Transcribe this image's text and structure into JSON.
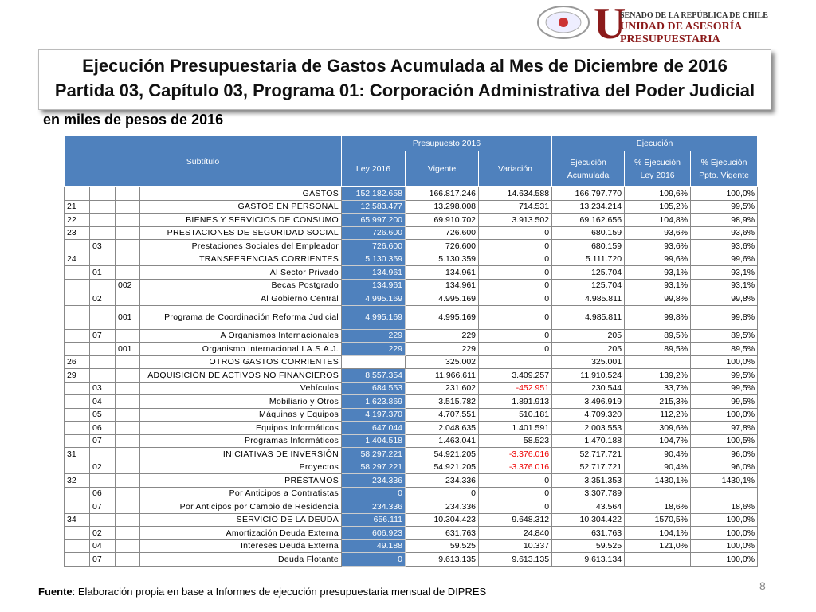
{
  "header": {
    "institution": "SENADO DE LA REPÚBLICA DE CHILE",
    "unit": "UNIDAD DE ASESORÍA PRESUPUESTARIA",
    "title_line1": "Ejecución Presupuestaria de Gastos Acumulada al Mes de Diciembre de 2016",
    "title_line2": "Partida 03, Capítulo 03, Programa 01: Corporación Administrativa del Poder Judicial",
    "subtitle": "en miles de pesos de 2016"
  },
  "table": {
    "group_headers": [
      "Subtítulo",
      "Presupuesto 2016",
      "Ejecución"
    ],
    "columns": [
      "Ley 2016",
      "Vigente",
      "Variación",
      "Ejecución Acumulada",
      "% Ejecución Ley 2016",
      "% Ejecución Ppto. Vigente"
    ],
    "rows": [
      [
        null,
        null,
        null,
        "GASTOS",
        "152.182.658",
        "166.817.246",
        "14.634.588",
        "166.797.770",
        "109,6%",
        "100,0%"
      ],
      [
        "21",
        null,
        null,
        "GASTOS EN PERSONAL",
        "12.583.477",
        "13.298.008",
        "714.531",
        "13.234.214",
        "105,2%",
        "99,5%"
      ],
      [
        "22",
        null,
        null,
        "BIENES Y SERVICIOS DE CONSUMO",
        "65.997.200",
        "69.910.702",
        "3.913.502",
        "69.162.656",
        "104,8%",
        "98,9%"
      ],
      [
        "23",
        null,
        null,
        "PRESTACIONES DE SEGURIDAD SOCIAL",
        "726.600",
        "726.600",
        "0",
        "680.159",
        "93,6%",
        "93,6%"
      ],
      [
        null,
        "03",
        null,
        "Prestaciones Sociales del Empleador",
        "726.600",
        "726.600",
        "0",
        "680.159",
        "93,6%",
        "93,6%"
      ],
      [
        "24",
        null,
        null,
        "TRANSFERENCIAS CORRIENTES",
        "5.130.359",
        "5.130.359",
        "0",
        "5.111.720",
        "99,6%",
        "99,6%"
      ],
      [
        null,
        "01",
        null,
        "Al Sector Privado",
        "134.961",
        "134.961",
        "0",
        "125.704",
        "93,1%",
        "93,1%"
      ],
      [
        null,
        null,
        "002",
        "Becas Postgrado",
        "134.961",
        "134.961",
        "0",
        "125.704",
        "93,1%",
        "93,1%"
      ],
      [
        null,
        "02",
        null,
        "Al Gobierno Central",
        "4.995.169",
        "4.995.169",
        "0",
        "4.985.811",
        "99,8%",
        "99,8%"
      ],
      [
        null,
        null,
        "001",
        "Programa de Coordinación Reforma Judicial",
        "4.995.169",
        "4.995.169",
        "0",
        "4.985.811",
        "99,8%",
        "99,8%"
      ],
      [
        null,
        "07",
        null,
        "A Organismos Internacionales",
        "229",
        "229",
        "0",
        "205",
        "89,5%",
        "89,5%"
      ],
      [
        null,
        null,
        "001",
        "Organismo Internacional I.A.S.A.J.",
        "229",
        "229",
        "0",
        "205",
        "89,5%",
        "89,5%"
      ],
      [
        "26",
        null,
        null,
        "OTROS GASTOS CORRIENTES",
        null,
        "325.002",
        null,
        "325.001",
        null,
        "100,0%"
      ],
      [
        "29",
        null,
        null,
        "ADQUISICIÓN DE ACTIVOS NO FINANCIEROS",
        "8.557.354",
        "11.966.611",
        "3.409.257",
        "11.910.524",
        "139,2%",
        "99,5%"
      ],
      [
        null,
        "03",
        null,
        "Vehículos",
        "684.553",
        "231.602",
        "-452.951",
        "230.544",
        "33,7%",
        "99,5%"
      ],
      [
        null,
        "04",
        null,
        "Mobiliario y Otros",
        "1.623.869",
        "3.515.782",
        "1.891.913",
        "3.496.919",
        "215,3%",
        "99,5%"
      ],
      [
        null,
        "05",
        null,
        "Máquinas y Equipos",
        "4.197.370",
        "4.707.551",
        "510.181",
        "4.709.320",
        "112,2%",
        "100,0%"
      ],
      [
        null,
        "06",
        null,
        "Equipos Informáticos",
        "647.044",
        "2.048.635",
        "1.401.591",
        "2.003.553",
        "309,6%",
        "97,8%"
      ],
      [
        null,
        "07",
        null,
        "Programas Informáticos",
        "1.404.518",
        "1.463.041",
        "58.523",
        "1.470.188",
        "104,7%",
        "100,5%"
      ],
      [
        "31",
        null,
        null,
        "INICIATIVAS DE INVERSIÓN",
        "58.297.221",
        "54.921.205",
        "-3.376.016",
        "52.717.721",
        "90,4%",
        "96,0%"
      ],
      [
        null,
        "02",
        null,
        "Proyectos",
        "58.297.221",
        "54.921.205",
        "-3.376.016",
        "52.717.721",
        "90,4%",
        "96,0%"
      ],
      [
        "32",
        null,
        null,
        "PRÉSTAMOS",
        "234.336",
        "234.336",
        "0",
        "3.351.353",
        "1430,1%",
        "1430,1%"
      ],
      [
        null,
        "06",
        null,
        "Por Anticipos a Contratistas",
        "0",
        "0",
        "0",
        "3.307.789",
        null,
        null
      ],
      [
        null,
        "07",
        null,
        "Por Anticipos por Cambio de Residencia",
        "234.336",
        "234.336",
        "0",
        "43.564",
        "18,6%",
        "18,6%"
      ],
      [
        "34",
        null,
        null,
        "SERVICIO DE LA DEUDA",
        "656.111",
        "10.304.423",
        "9.648.312",
        "10.304.422",
        "1570,5%",
        "100,0%"
      ],
      [
        null,
        "02",
        null,
        "Amortización Deuda Externa",
        "606.923",
        "631.763",
        "24.840",
        "631.763",
        "104,1%",
        "100,0%"
      ],
      [
        null,
        "04",
        null,
        "Intereses Deuda Externa",
        "49.188",
        "59.525",
        "10.337",
        "59.525",
        "121,0%",
        "100,0%"
      ],
      [
        null,
        "07",
        null,
        "Deuda Flotante",
        "0",
        "9.613.135",
        "9.613.135",
        "9.613.134",
        null,
        "100,0%"
      ]
    ]
  },
  "footer": {
    "source_label": "Fuente",
    "source_text": ": Elaboración propia en base  a Informes de ejecución presupuestaria mensual de DIPRES",
    "page_number": "8"
  }
}
